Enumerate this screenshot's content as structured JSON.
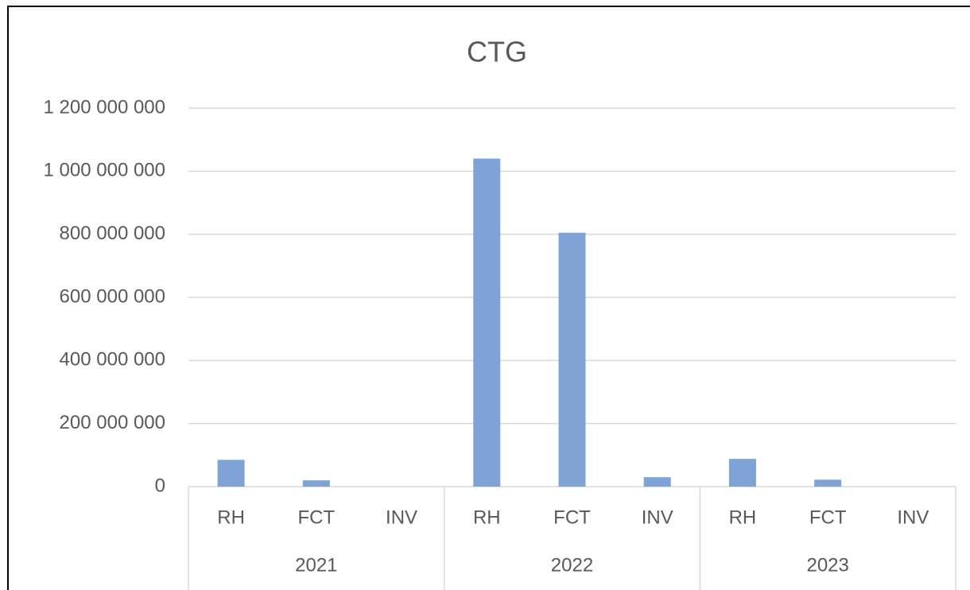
{
  "chart_data": {
    "type": "bar",
    "title": "CTG",
    "categories": [
      "RH",
      "FCT",
      "INV",
      "RH",
      "FCT",
      "INV",
      "RH",
      "FCT",
      "INV"
    ],
    "groups": [
      "2021",
      "2022",
      "2023"
    ],
    "values": [
      85000000,
      20000000,
      0,
      1040000000,
      805000000,
      30000000,
      88000000,
      22000000,
      0
    ],
    "color": "#7fa3d7",
    "ylim": [
      0,
      1200000000
    ],
    "yticks": [
      0,
      {
        "value": 200000000,
        "label": "200 000 000"
      },
      {
        "value": 400000000,
        "label": "400 000 000"
      },
      {
        "value": 600000000,
        "label": "600 000 000"
      },
      {
        "value": 800000000,
        "label": "800 000 000"
      },
      {
        "value": 1000000000,
        "label": "1 000 000 000"
      },
      {
        "value": 1200000000,
        "label": "1 200 000 000"
      }
    ],
    "grid": true
  }
}
